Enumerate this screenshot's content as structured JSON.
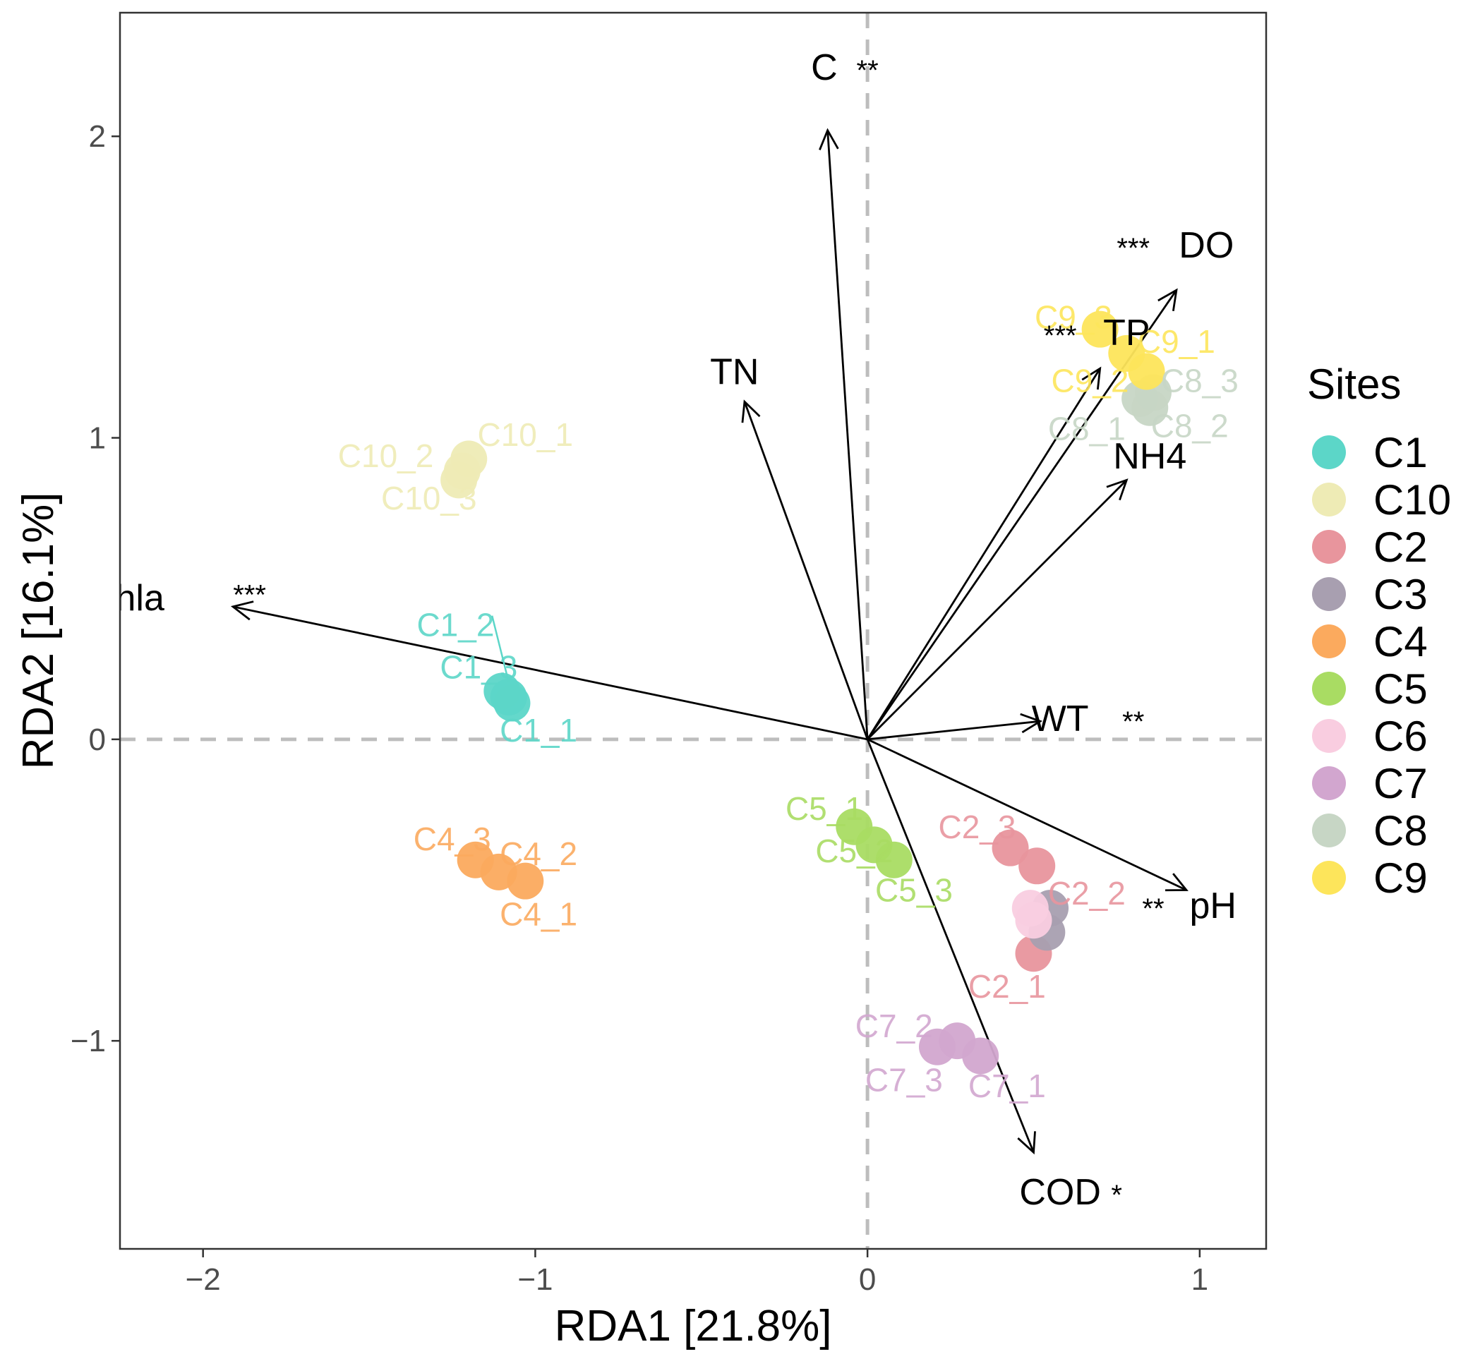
{
  "chart_data": {
    "type": "scatter",
    "subtype": "RDA biplot",
    "xlabel": "RDA1 [21.8%]",
    "ylabel": "RDA2 [16.1%]",
    "xlim": [
      -2.25,
      1.2
    ],
    "ylim": [
      -1.69,
      2.41
    ],
    "x_ticks": [
      -2,
      -1,
      0,
      1
    ],
    "x_tick_labels": [
      "−2",
      "−1",
      "0",
      "1"
    ],
    "y_ticks": [
      -1,
      0,
      1,
      2
    ],
    "y_tick_labels": [
      "−1",
      "0",
      "1",
      "2"
    ],
    "reference_lines": {
      "x": 0,
      "y": 0,
      "style": "dashed"
    },
    "legend": {
      "title": "Sites",
      "position": "right",
      "entries": [
        {
          "name": "C1",
          "color": "#5cd6c8"
        },
        {
          "name": "C10",
          "color": "#eeebb5"
        },
        {
          "name": "C2",
          "color": "#e8959d"
        },
        {
          "name": "C3",
          "color": "#a89fb0"
        },
        {
          "name": "C4",
          "color": "#fbaa5e"
        },
        {
          "name": "C5",
          "color": "#a9dc63"
        },
        {
          "name": "C6",
          "color": "#f9cde0"
        },
        {
          "name": "C7",
          "color": "#d2a6cf"
        },
        {
          "name": "C8",
          "color": "#c7d6c5"
        },
        {
          "name": "C9",
          "color": "#fde55b"
        }
      ]
    },
    "samples": [
      {
        "site": "C1",
        "label": "C1_1",
        "x": -1.07,
        "y": 0.12
      },
      {
        "site": "C1",
        "label": "C1_2",
        "x": -1.1,
        "y": 0.16
      },
      {
        "site": "C1",
        "label": "C1_3",
        "x": -1.08,
        "y": 0.14
      },
      {
        "site": "C10",
        "label": "C10_1",
        "x": -1.2,
        "y": 0.93
      },
      {
        "site": "C10",
        "label": "C10_2",
        "x": -1.22,
        "y": 0.89
      },
      {
        "site": "C10",
        "label": "C10_3",
        "x": -1.23,
        "y": 0.86
      },
      {
        "site": "C2",
        "label": "C2_1",
        "x": 0.5,
        "y": -0.71
      },
      {
        "site": "C2",
        "label": "C2_2",
        "x": 0.51,
        "y": -0.42
      },
      {
        "site": "C2",
        "label": "C2_3",
        "x": 0.43,
        "y": -0.36
      },
      {
        "site": "C3",
        "label": "C3_1",
        "x": 0.55,
        "y": -0.56
      },
      {
        "site": "C3",
        "label": "C3_2",
        "x": 0.54,
        "y": -0.64
      },
      {
        "site": "C4",
        "label": "C4_1",
        "x": -1.03,
        "y": -0.47
      },
      {
        "site": "C4",
        "label": "C4_2",
        "x": -1.11,
        "y": -0.44
      },
      {
        "site": "C4",
        "label": "C4_3",
        "x": -1.18,
        "y": -0.4
      },
      {
        "site": "C5",
        "label": "C5_1",
        "x": -0.04,
        "y": -0.29
      },
      {
        "site": "C5",
        "label": "C5_2",
        "x": 0.02,
        "y": -0.35
      },
      {
        "site": "C5",
        "label": "C5_3",
        "x": 0.08,
        "y": -0.4
      },
      {
        "site": "C6",
        "label": "C6_1",
        "x": 0.49,
        "y": -0.56
      },
      {
        "site": "C6",
        "label": "C6_2",
        "x": 0.5,
        "y": -0.6
      },
      {
        "site": "C7",
        "label": "C7_1",
        "x": 0.34,
        "y": -1.05
      },
      {
        "site": "C7",
        "label": "C7_2",
        "x": 0.27,
        "y": -1.0
      },
      {
        "site": "C7",
        "label": "C7_3",
        "x": 0.21,
        "y": -1.02
      },
      {
        "site": "C8",
        "label": "C8_1",
        "x": 0.82,
        "y": 1.13
      },
      {
        "site": "C8",
        "label": "C8_2",
        "x": 0.85,
        "y": 1.1
      },
      {
        "site": "C8",
        "label": "C8_3",
        "x": 0.86,
        "y": 1.15
      },
      {
        "site": "C9",
        "label": "C9_1",
        "x": 0.84,
        "y": 1.22
      },
      {
        "site": "C9",
        "label": "C9_2",
        "x": 0.78,
        "y": 1.28
      },
      {
        "site": "C9",
        "label": "C9_3",
        "x": 0.7,
        "y": 1.36
      }
    ],
    "visible_labels": [
      {
        "text": "C1_1",
        "x": -0.99,
        "y": 0.03
      },
      {
        "text": "C1_2",
        "x": -1.24,
        "y": 0.38
      },
      {
        "text": "C1_3",
        "x": -1.17,
        "y": 0.24
      },
      {
        "text": "C10_1",
        "x": -1.03,
        "y": 1.01
      },
      {
        "text": "C10_2",
        "x": -1.45,
        "y": 0.94
      },
      {
        "text": "C10_3",
        "x": -1.32,
        "y": 0.8
      },
      {
        "text": "C2_1",
        "x": 0.42,
        "y": -0.82
      },
      {
        "text": "C2_2",
        "x": 0.66,
        "y": -0.51
      },
      {
        "text": "C2_3",
        "x": 0.33,
        "y": -0.29
      },
      {
        "text": "C4_1",
        "x": -0.99,
        "y": -0.58
      },
      {
        "text": "C4_2",
        "x": -0.99,
        "y": -0.38
      },
      {
        "text": "C4_3",
        "x": -1.25,
        "y": -0.33
      },
      {
        "text": "C5_1",
        "x": -0.13,
        "y": -0.23
      },
      {
        "text": "C5_2",
        "x": -0.04,
        "y": -0.37
      },
      {
        "text": "C5_3",
        "x": 0.14,
        "y": -0.5
      },
      {
        "text": "C7_1",
        "x": 0.42,
        "y": -1.15
      },
      {
        "text": "C7_2",
        "x": 0.08,
        "y": -0.95
      },
      {
        "text": "C7_3",
        "x": 0.11,
        "y": -1.13
      },
      {
        "text": "C8_1",
        "x": 0.66,
        "y": 1.03
      },
      {
        "text": "C8_2",
        "x": 0.97,
        "y": 1.04
      },
      {
        "text": "C8_3",
        "x": 1.0,
        "y": 1.19
      },
      {
        "text": "C9_1",
        "x": 0.93,
        "y": 1.32
      },
      {
        "text": "C9_2",
        "x": 0.67,
        "y": 1.19
      },
      {
        "text": "C9_3",
        "x": 0.62,
        "y": 1.4
      }
    ],
    "environmental_vectors": [
      {
        "name": "Chla",
        "sig": "***",
        "x": -1.91,
        "y": 0.44,
        "label_x": -2.23,
        "label_y": 0.47,
        "sig_x": -1.86,
        "sig_y": 0.49
      },
      {
        "name": "C",
        "sig": "**",
        "x": -0.12,
        "y": 2.02,
        "label_x": -0.13,
        "label_y": 2.23,
        "sig_x": 0.0,
        "sig_y": 2.23
      },
      {
        "name": "TN",
        "sig": "",
        "x": -0.37,
        "y": 1.12,
        "label_x": -0.4,
        "label_y": 1.22,
        "sig_x": 0,
        "sig_y": 0
      },
      {
        "name": "DO",
        "sig": "***",
        "x": 0.93,
        "y": 1.49,
        "label_x": 1.02,
        "label_y": 1.64,
        "sig_x": 0.8,
        "sig_y": 1.64
      },
      {
        "name": "TP",
        "sig": "***",
        "x": 0.7,
        "y": 1.23,
        "label_x": 0.78,
        "label_y": 1.35,
        "sig_x": 0.58,
        "sig_y": 1.35
      },
      {
        "name": "NH4",
        "sig": "",
        "x": 0.78,
        "y": 0.86,
        "label_x": 0.85,
        "label_y": 0.94,
        "sig_x": 0,
        "sig_y": 0
      },
      {
        "name": "WT",
        "sig": "**",
        "x": 0.52,
        "y": 0.06,
        "label_x": 0.58,
        "label_y": 0.07,
        "sig_x": 0.8,
        "sig_y": 0.07
      },
      {
        "name": "pH",
        "sig": "**",
        "x": 0.96,
        "y": -0.5,
        "label_x": 1.04,
        "label_y": -0.55,
        "sig_x": 0.86,
        "sig_y": -0.55
      },
      {
        "name": "COD",
        "sig": "*",
        "x": 0.5,
        "y": -1.37,
        "label_x": 0.58,
        "label_y": -1.5,
        "sig_x": 0.75,
        "sig_y": -1.5
      }
    ]
  }
}
